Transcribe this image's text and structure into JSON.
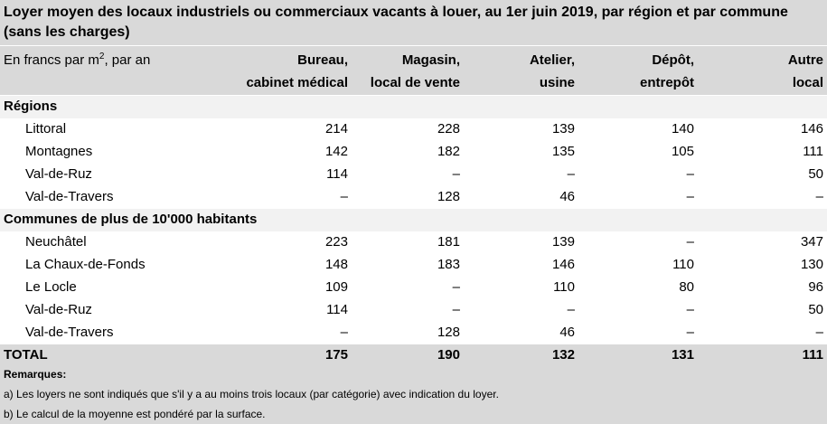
{
  "title": "Loyer moyen des locaux industriels ou commerciaux vacants à louer, au 1er juin 2019, par région et par commune (sans les charges)",
  "unit_label_prefix": "En francs par m",
  "unit_label_sup": "2",
  "unit_label_suffix": ", par an",
  "columns": [
    {
      "line1": "Bureau,",
      "line2": "cabinet médical"
    },
    {
      "line1": "Magasin,",
      "line2": "local de vente"
    },
    {
      "line1": "Atelier,",
      "line2": "usine"
    },
    {
      "line1": "Dépôt,",
      "line2": "entrepôt"
    },
    {
      "line1": "Autre",
      "line2": "local"
    }
  ],
  "groups": [
    {
      "label": "Régions",
      "rows": [
        {
          "name": "Littoral",
          "values": [
            "214",
            "228",
            "139",
            "140",
            "146"
          ]
        },
        {
          "name": "Montagnes",
          "values": [
            "142",
            "182",
            "135",
            "105",
            "111"
          ]
        },
        {
          "name": "Val-de-Ruz",
          "values": [
            "114",
            "–",
            "–",
            "–",
            "50"
          ]
        },
        {
          "name": "Val-de-Travers",
          "values": [
            "–",
            "128",
            "46",
            "–",
            "–"
          ]
        }
      ]
    },
    {
      "label": "Communes de plus de 10'000 habitants",
      "rows": [
        {
          "name": "Neuchâtel",
          "values": [
            "223",
            "181",
            "139",
            "–",
            "347"
          ]
        },
        {
          "name": "La Chaux-de-Fonds",
          "values": [
            "148",
            "183",
            "146",
            "110",
            "130"
          ]
        },
        {
          "name": "Le Locle",
          "values": [
            "109",
            "–",
            "110",
            "80",
            "96"
          ]
        },
        {
          "name": "Val-de-Ruz",
          "values": [
            "114",
            "–",
            "–",
            "–",
            "50"
          ]
        },
        {
          "name": "Val-de-Travers",
          "values": [
            "–",
            "128",
            "46",
            "–",
            "–"
          ]
        }
      ]
    }
  ],
  "total": {
    "name": "TOTAL",
    "values": [
      "175",
      "190",
      "132",
      "131",
      "111"
    ]
  },
  "remarks": {
    "heading": "Remarques:",
    "a": "a) Les loyers ne sont indiqués que s'il y a au moins trois locaux (par catégorie) avec indication du loyer.",
    "b": "b) Le calcul de la moyenne est pondéré par la surface."
  }
}
